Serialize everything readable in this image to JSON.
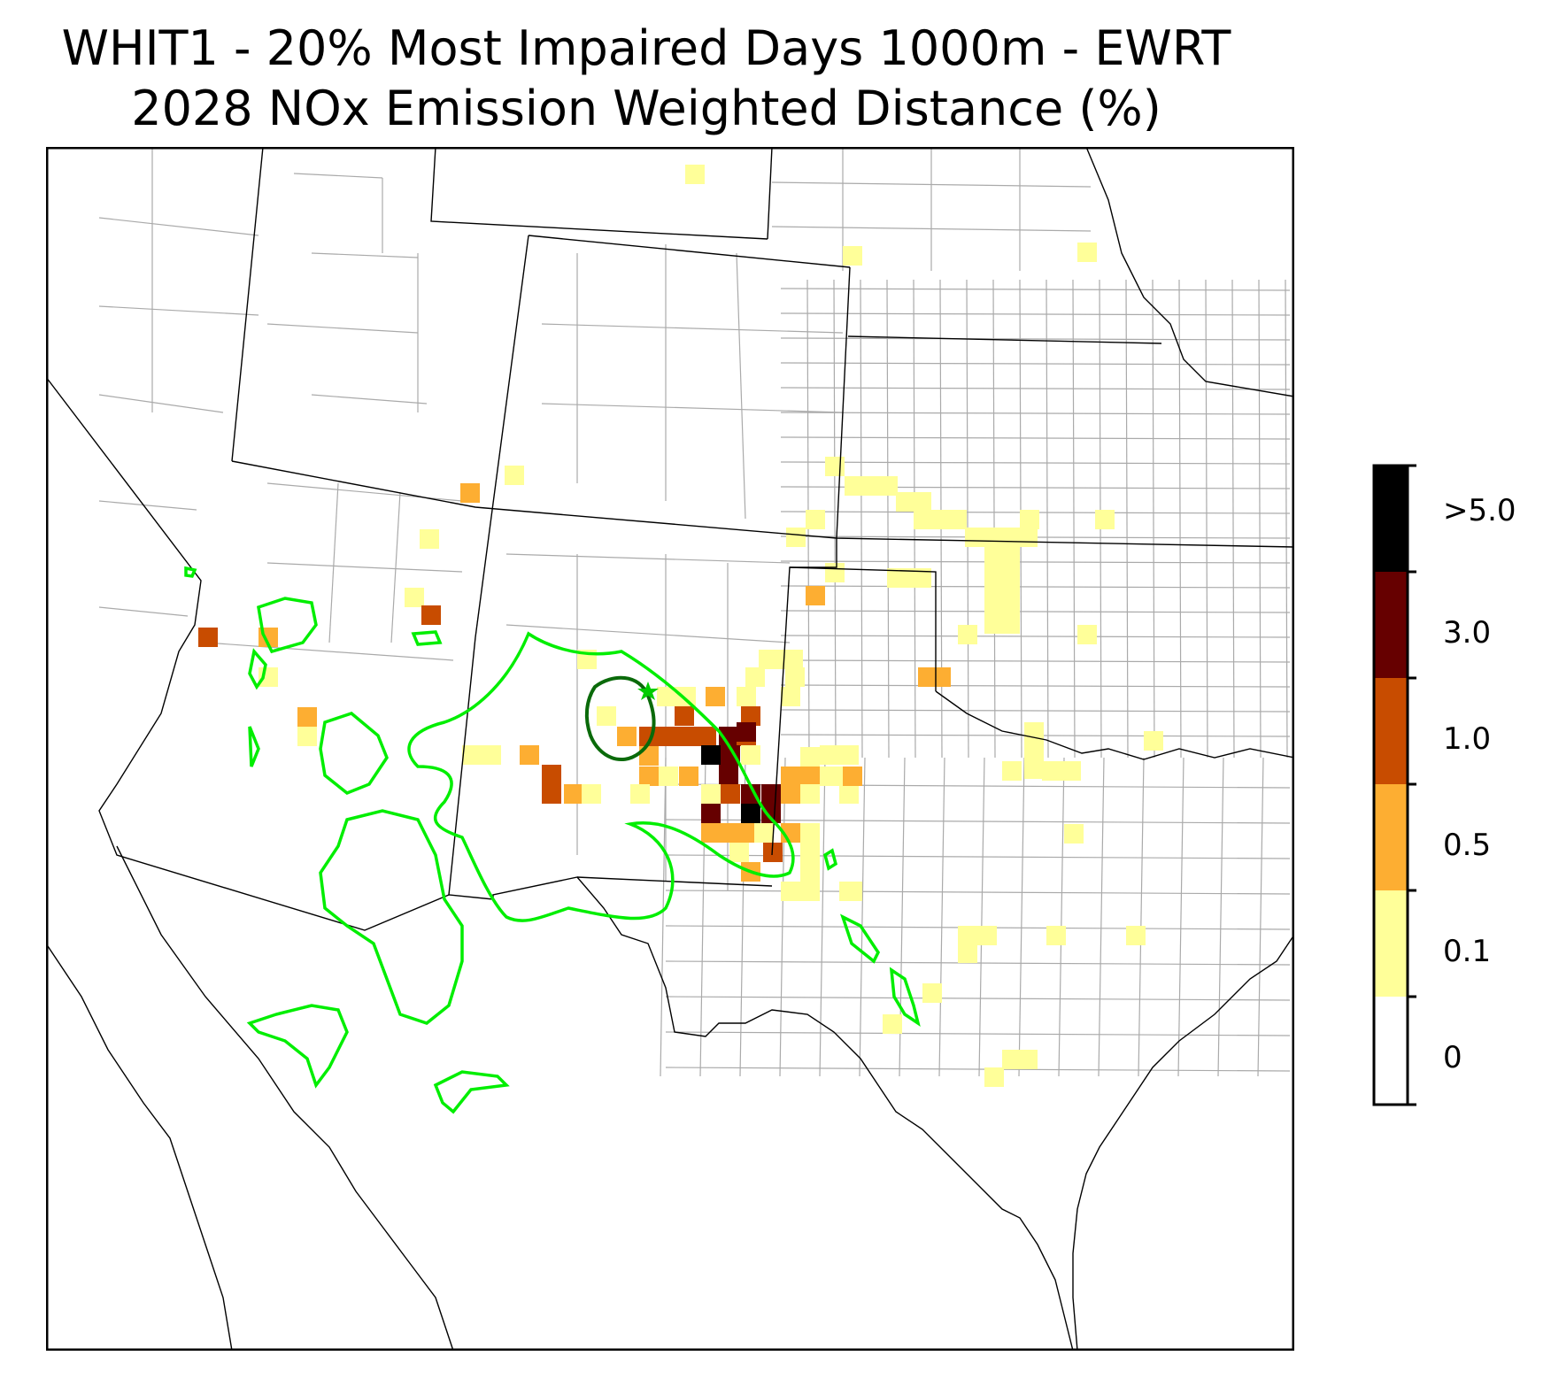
{
  "title_line1": "WHIT1 - 20% Most Impaired Days 1000m - EWRT",
  "title_line2": "2028 NOx Emission Weighted Distance (%)",
  "colorbar": {
    "labels": [
      ">5.0",
      "3.0",
      "1.0",
      "0.5",
      "0.1",
      "0"
    ],
    "bins": [
      {
        "range": "0-0.1",
        "color": "#ffffff"
      },
      {
        "range": "0.1-0.5",
        "color": "#ffff99"
      },
      {
        "range": "0.5-1.0",
        "color": "#fdae32"
      },
      {
        "range": "1.0-3.0",
        "color": "#c84c00"
      },
      {
        "range": "3.0-5.0",
        "color": "#660000"
      },
      {
        "range": ">5.0",
        "color": "#000000"
      }
    ]
  },
  "colors": {
    "contour_outer": "#00ee00",
    "contour_inner": "#0a6a0a",
    "state_lines": "#000000",
    "county_lines": "#aaaaaa",
    "site_marker": "#00cc00"
  },
  "site_marker_icon": "star-icon"
}
